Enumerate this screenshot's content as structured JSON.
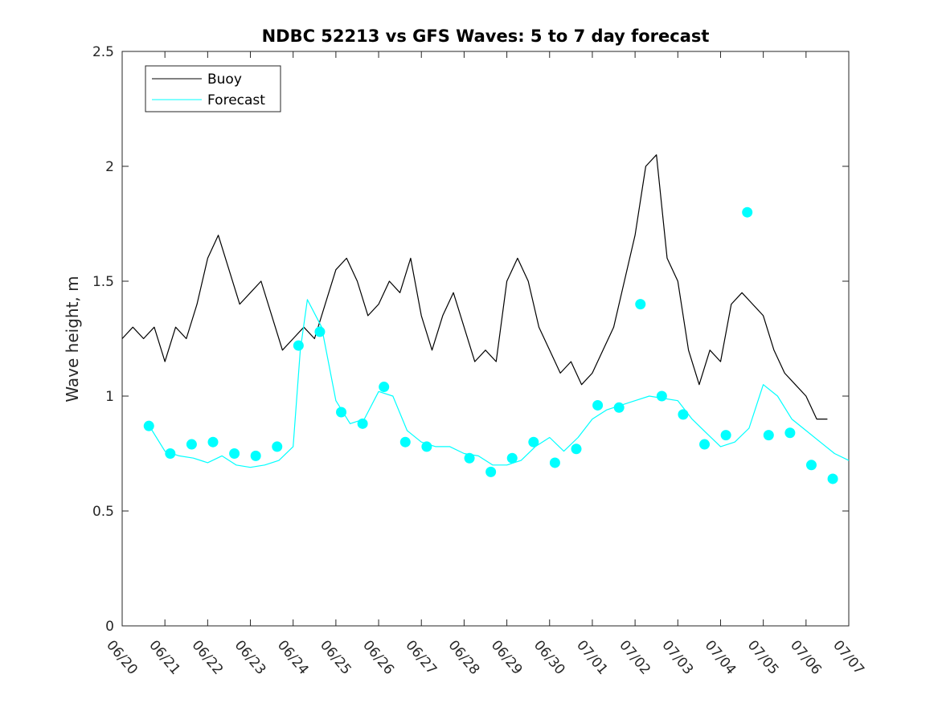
{
  "chart_data": {
    "type": "line",
    "title": "NDBC 52213 vs GFS Waves: 5 to 7 day forecast",
    "ylabel": "Wave height, m",
    "xlabel": "",
    "xlim": [
      "06/20",
      "07/07"
    ],
    "ylim": [
      0,
      2.5
    ],
    "yticks": [
      0,
      0.5,
      1,
      1.5,
      2,
      2.5
    ],
    "ytick_labels": [
      "0",
      "0.5",
      "1",
      "1.5",
      "2",
      "2.5"
    ],
    "xtick_labels": [
      "06/20",
      "06/21",
      "06/22",
      "06/23",
      "06/24",
      "06/25",
      "06/26",
      "06/27",
      "06/28",
      "06/29",
      "06/30",
      "07/01",
      "07/02",
      "07/03",
      "07/04",
      "07/05",
      "07/06",
      "07/07"
    ],
    "grid": false,
    "legend_position": "top-left",
    "colors": {
      "buoy": "#000000",
      "forecast": "#00FFFF"
    },
    "series": [
      {
        "name": "Buoy",
        "style": "line",
        "x": [
          "06/20",
          "06/20 06",
          "06/20 12",
          "06/20 18",
          "06/21",
          "06/21 06",
          "06/21 12",
          "06/21 18",
          "06/22",
          "06/22 06",
          "06/22 12",
          "06/22 18",
          "06/23",
          "06/23 06",
          "06/23 12",
          "06/23 18",
          "06/24",
          "06/24 06",
          "06/24 12",
          "06/24 18",
          "06/25",
          "06/25 06",
          "06/25 12",
          "06/25 18",
          "06/26",
          "06/26 06",
          "06/26 12",
          "06/26 18",
          "06/27",
          "06/27 06",
          "06/27 12",
          "06/27 18",
          "06/28",
          "06/28 06",
          "06/28 12",
          "06/28 18",
          "06/29",
          "06/29 06",
          "06/29 12",
          "06/29 18",
          "06/30",
          "06/30 06",
          "06/30 12",
          "06/30 18",
          "07/01",
          "07/01 06",
          "07/01 12",
          "07/01 18",
          "07/02",
          "07/02 06",
          "07/02 12",
          "07/02 18",
          "07/03",
          "07/03 06",
          "07/03 12",
          "07/03 18",
          "07/04",
          "07/04 06",
          "07/04 12",
          "07/04 18",
          "07/05",
          "07/05 06",
          "07/05 12",
          "07/05 18",
          "07/06",
          "07/06 06",
          "07/06 12"
        ],
        "y": [
          1.25,
          1.3,
          1.25,
          1.3,
          1.15,
          1.3,
          1.25,
          1.4,
          1.6,
          1.7,
          1.55,
          1.4,
          1.45,
          1.5,
          1.35,
          1.2,
          1.25,
          1.3,
          1.25,
          1.4,
          1.55,
          1.6,
          1.5,
          1.35,
          1.4,
          1.5,
          1.45,
          1.6,
          1.35,
          1.2,
          1.35,
          1.45,
          1.3,
          1.15,
          1.2,
          1.15,
          1.5,
          1.6,
          1.5,
          1.3,
          1.2,
          1.1,
          1.15,
          1.05,
          1.1,
          1.2,
          1.3,
          1.5,
          1.7,
          2.0,
          2.05,
          1.6,
          1.5,
          1.2,
          1.05,
          1.2,
          1.15,
          1.4,
          1.45,
          1.4,
          1.35,
          1.2,
          1.1,
          1.05,
          1.0,
          0.9,
          0.9
        ]
      },
      {
        "name": "Forecast",
        "style": "line",
        "x": [
          "06/20 16",
          "06/21",
          "06/21 08",
          "06/21 16",
          "06/22",
          "06/22 08",
          "06/22 16",
          "06/23",
          "06/23 08",
          "06/23 16",
          "06/24",
          "06/24 04",
          "06/24 08",
          "06/24 16",
          "06/25",
          "06/25 08",
          "06/25 16",
          "06/26",
          "06/26 08",
          "06/26 16",
          "06/27",
          "06/27 08",
          "06/27 16",
          "06/28",
          "06/28 08",
          "06/28 16",
          "06/29",
          "06/29 08",
          "06/29 16",
          "06/30",
          "06/30 08",
          "06/30 16",
          "07/01",
          "07/01 08",
          "07/01 16",
          "07/02",
          "07/02 08",
          "07/02 16",
          "07/03",
          "07/03 08",
          "07/03 16",
          "07/04",
          "07/04 08",
          "07/04 16",
          "07/05",
          "07/05 08",
          "07/05 16",
          "07/06",
          "07/06 08",
          "07/06 16",
          "07/07"
        ],
        "y": [
          0.86,
          0.76,
          0.74,
          0.73,
          0.71,
          0.74,
          0.7,
          0.69,
          0.7,
          0.72,
          0.78,
          1.2,
          1.42,
          1.3,
          0.98,
          0.88,
          0.9,
          1.02,
          1.0,
          0.85,
          0.8,
          0.78,
          0.78,
          0.75,
          0.74,
          0.7,
          0.7,
          0.72,
          0.78,
          0.82,
          0.76,
          0.82,
          0.9,
          0.94,
          0.96,
          0.98,
          1.0,
          0.99,
          0.98,
          0.9,
          0.84,
          0.78,
          0.8,
          0.86,
          1.05,
          1.0,
          0.9,
          0.85,
          0.8,
          0.75,
          0.72
        ]
      },
      {
        "name": "",
        "style": "markers",
        "x": [
          "06/20 15",
          "06/21 03",
          "06/21 15",
          "06/22 03",
          "06/22 15",
          "06/23 03",
          "06/23 15",
          "06/24 03",
          "06/24 15",
          "06/25 03",
          "06/25 15",
          "06/26 03",
          "06/26 15",
          "06/27 03",
          "06/28 03",
          "06/28 15",
          "06/29 03",
          "06/29 15",
          "06/30 03",
          "06/30 15",
          "07/01 03",
          "07/01 15",
          "07/02 03",
          "07/02 15",
          "07/03 03",
          "07/03 15",
          "07/04 03",
          "07/04 15",
          "07/05 03",
          "07/05 15",
          "07/06 03",
          "07/06 15"
        ],
        "y": [
          0.87,
          0.75,
          0.79,
          0.8,
          0.75,
          0.74,
          0.78,
          1.22,
          1.28,
          0.93,
          0.88,
          1.04,
          0.8,
          0.78,
          0.73,
          0.67,
          0.73,
          0.8,
          0.71,
          0.77,
          0.96,
          0.95,
          1.4,
          1.0,
          0.92,
          0.79,
          0.83,
          1.8,
          0.83,
          0.84,
          0.7,
          0.64
        ]
      }
    ]
  }
}
